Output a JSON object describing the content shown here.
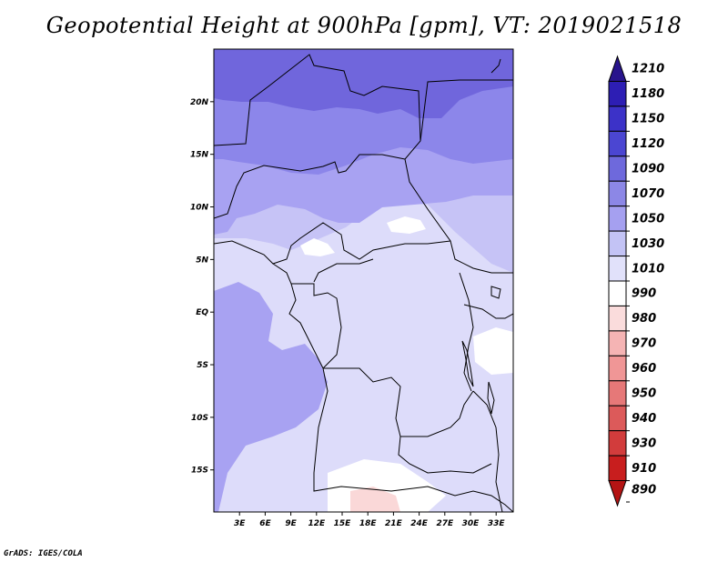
{
  "title": "Geopotential Height at 900hPa [gpm], VT: 2019021518",
  "credit": "GrADS: IGES/COLA",
  "map": {
    "projection": "latlon",
    "lon_range": [
      0,
      35
    ],
    "lat_range": [
      -19,
      25
    ],
    "lon_ticks": [
      "3E",
      "6E",
      "9E",
      "12E",
      "15E",
      "18E",
      "21E",
      "24E",
      "27E",
      "30E",
      "33E"
    ],
    "lon_tick_values": [
      3,
      6,
      9,
      12,
      15,
      18,
      21,
      24,
      27,
      30,
      33
    ],
    "lat_ticks": [
      "20N",
      "15N",
      "10N",
      "5N",
      "EQ",
      "5S",
      "10S",
      "15S"
    ],
    "lat_tick_values": [
      20,
      15,
      10,
      5,
      0,
      -5,
      -10,
      -15
    ]
  },
  "colorbar": {
    "labels": [
      "1210",
      "1180",
      "1150",
      "1120",
      "1090",
      "1070",
      "1050",
      "1030",
      "1010",
      "990",
      "980",
      "970",
      "960",
      "950",
      "940",
      "930",
      "910",
      "890"
    ],
    "colors": [
      "#28148c",
      "#2d1eb4",
      "#3c32c8",
      "#4b46d2",
      "#6e69dc",
      "#8c87e6",
      "#a5a0f0",
      "#c3c3f5",
      "#e1e1fa",
      "#ffffff",
      "#fadcdc",
      "#f5b4b4",
      "#f09696",
      "#e67878",
      "#dc5a5a",
      "#d23c3c",
      "#c81e1e",
      "#b41414"
    ]
  },
  "field_colors": {
    "c1090": "#7066dc",
    "c1070": "#8c86ea",
    "c1050": "#a8a2f2",
    "c1030": "#c6c3f6",
    "c1010": "#dddcfa",
    "c990": "#ffffff",
    "c980": "#fad8d8"
  }
}
